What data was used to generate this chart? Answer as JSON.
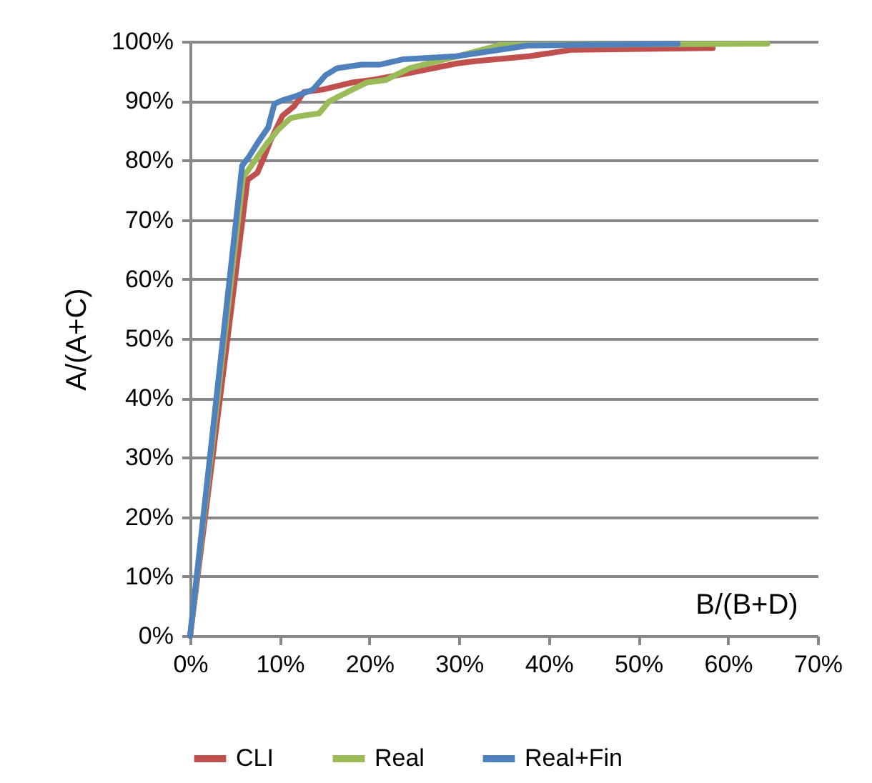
{
  "chart_data": {
    "type": "line",
    "xlabel": "B/(B+D)",
    "ylabel": "A/(A+C)",
    "xlim": [
      0,
      70
    ],
    "ylim": [
      0,
      100
    ],
    "xticks": [
      {
        "value": 0,
        "label": "0%"
      },
      {
        "value": 10,
        "label": "10%"
      },
      {
        "value": 20,
        "label": "20%"
      },
      {
        "value": 30,
        "label": "30%"
      },
      {
        "value": 40,
        "label": "40%"
      },
      {
        "value": 50,
        "label": "50%"
      },
      {
        "value": 60,
        "label": "60%"
      },
      {
        "value": 70,
        "label": "70%"
      }
    ],
    "yticks": [
      {
        "value": 0,
        "label": "0%"
      },
      {
        "value": 10,
        "label": "10%"
      },
      {
        "value": 20,
        "label": "20%"
      },
      {
        "value": 30,
        "label": "30%"
      },
      {
        "value": 40,
        "label": "40%"
      },
      {
        "value": 50,
        "label": "50%"
      },
      {
        "value": 60,
        "label": "60%"
      },
      {
        "value": 70,
        "label": "70%"
      },
      {
        "value": 80,
        "label": "80%"
      },
      {
        "value": 90,
        "label": "90%"
      },
      {
        "value": 100,
        "label": "100%"
      }
    ],
    "grid": "y",
    "legend": "bottom",
    "marker": "none",
    "line_style": "solid",
    "series": [
      {
        "name": "CLI",
        "color": "#c0504d",
        "x": [
          0,
          6.4,
          7.5,
          8.3,
          8.9,
          10.3,
          11.6,
          12.7,
          14.8,
          18.1,
          20.2,
          24.5,
          29.8,
          31.9,
          37.8,
          42.6,
          58.3
        ],
        "values": [
          0,
          76.7,
          77.9,
          80.7,
          83.1,
          87.5,
          89.1,
          91.5,
          91.9,
          93.1,
          93.5,
          94.7,
          96.3,
          96.7,
          97.5,
          98.6,
          98.9
        ]
      },
      {
        "name": "Real",
        "color": "#9bbb59",
        "x": [
          0,
          5.9,
          8.5,
          9.8,
          11.2,
          12.5,
          14.4,
          15.5,
          18.1,
          19.7,
          21.8,
          24.5,
          29.8,
          34.6,
          64.4
        ],
        "values": [
          0,
          77.1,
          82.7,
          85.1,
          87.1,
          87.5,
          87.9,
          89.9,
          91.9,
          93.1,
          93.5,
          95.5,
          97.5,
          99.4,
          99.6
        ]
      },
      {
        "name": "Real+Fin",
        "color": "#4f81bd",
        "x": [
          0,
          5.8,
          6.6,
          7.6,
          8.7,
          9.4,
          10.3,
          11.6,
          13.7,
          15.1,
          16.4,
          19.1,
          21.2,
          23.8,
          29.7,
          37.7,
          54.4
        ],
        "values": [
          0,
          79.1,
          80.7,
          83.1,
          85.5,
          89.5,
          90.1,
          90.7,
          91.9,
          94.3,
          95.5,
          96.1,
          96.1,
          97.0,
          97.5,
          99.3,
          99.6
        ]
      }
    ]
  }
}
